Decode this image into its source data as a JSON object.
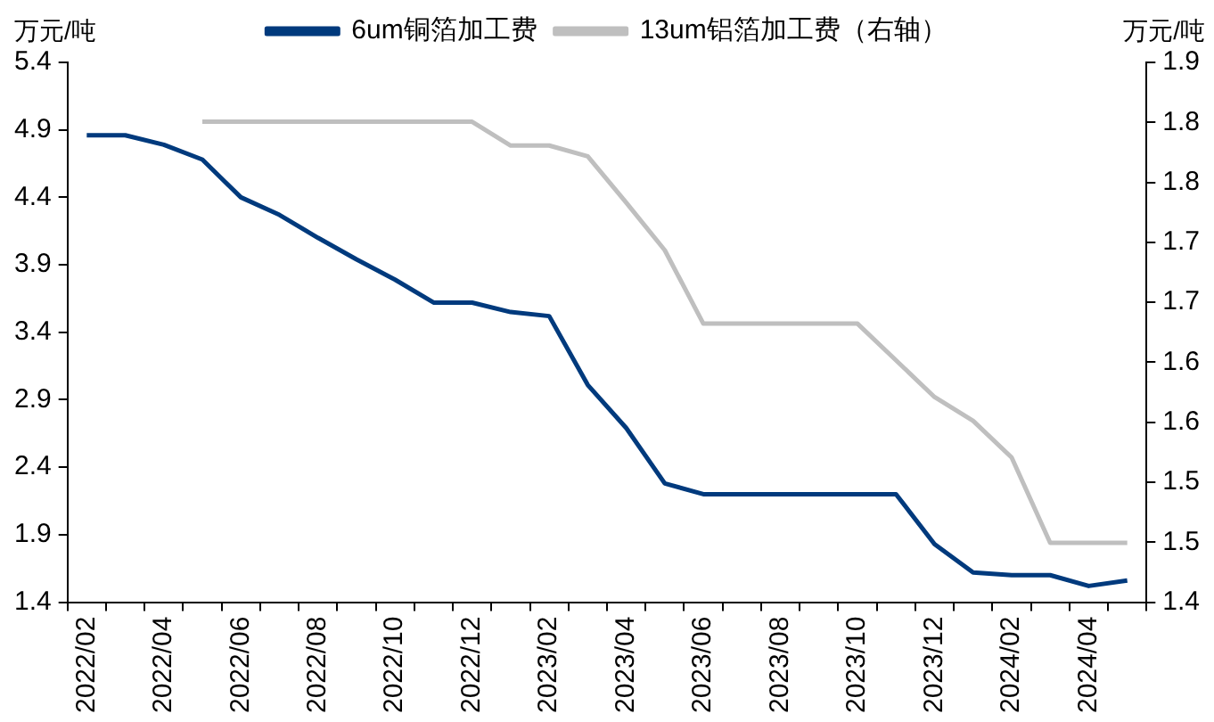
{
  "chart_data": {
    "type": "line",
    "ylabel": "万元/吨",
    "y2label": "万元/吨",
    "categories": [
      "2022/02",
      null,
      "2022/04",
      null,
      "2022/06",
      null,
      "2022/08",
      null,
      "2022/10",
      null,
      "2022/12",
      null,
      "2023/02",
      null,
      "2023/04",
      null,
      "2023/06",
      null,
      "2023/08",
      null,
      "2023/10",
      null,
      "2023/12",
      null,
      "2024/02",
      null,
      "2024/04",
      null
    ],
    "series": [
      {
        "name": "6um铜箔加工费",
        "color": "#003a7d",
        "values": [
          4.86,
          4.86,
          4.79,
          4.68,
          4.4,
          4.27,
          4.1,
          3.94,
          3.79,
          3.62,
          3.62,
          3.55,
          3.52,
          3.01,
          2.69,
          2.28,
          2.2,
          2.2,
          2.2,
          2.2,
          2.2,
          2.2,
          1.83,
          1.62,
          1.6,
          1.6,
          1.52,
          1.56
        ]
      },
      {
        "name": "13um铝箔加工费（右轴）",
        "color": "#bfbfbf",
        "axis": "y2",
        "values": [
          null,
          null,
          null,
          1.845,
          1.845,
          1.845,
          1.845,
          1.845,
          1.845,
          1.845,
          1.845,
          1.823,
          1.823,
          1.813,
          1.77,
          1.726,
          1.658,
          1.658,
          1.658,
          1.658,
          1.658,
          1.624,
          1.59,
          1.568,
          1.534,
          1.455,
          1.455,
          1.455
        ]
      }
    ],
    "ylim": [
      1.4,
      5.4
    ],
    "yticks": [
      1.4,
      1.9,
      2.4,
      2.9,
      3.4,
      3.9,
      4.4,
      4.9,
      5.4
    ],
    "y2lim": [
      1.4,
      1.9
    ],
    "y2ticks": [
      1.4,
      {
        "value": 1.4556,
        "label": "1.5"
      },
      {
        "value": 1.5111,
        "label": "1.5"
      },
      {
        "value": 1.5667,
        "label": "1.6"
      },
      {
        "value": 1.6222,
        "label": "1.6"
      },
      {
        "value": 1.6778,
        "label": "1.7"
      },
      {
        "value": 1.7333,
        "label": "1.7"
      },
      {
        "value": 1.7889,
        "label": "1.8"
      },
      {
        "value": 1.8444,
        "label": "1.8"
      },
      1.9
    ],
    "grid": false,
    "legend": "top",
    "marker": "none",
    "line_style": "solid"
  }
}
